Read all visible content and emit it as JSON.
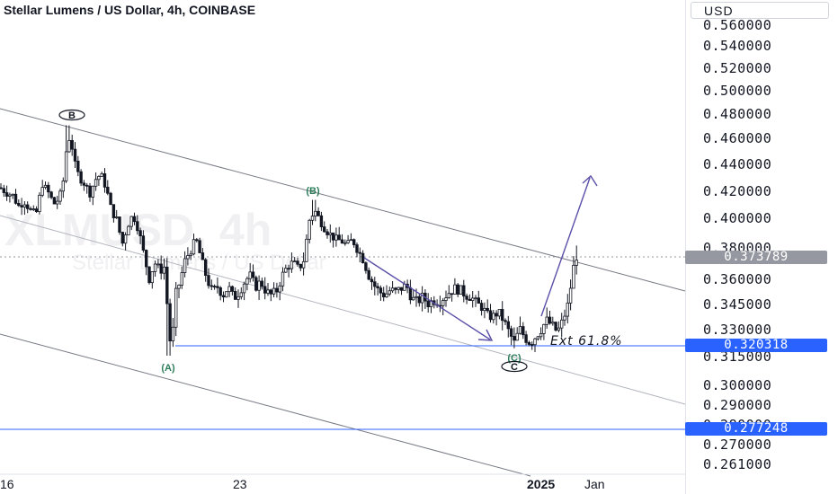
{
  "header": {
    "title": "Stellar Lumens / US Dollar, 4h, COINBASE"
  },
  "watermark": {
    "symbol": "XLMUSD, 4h",
    "name": "Stellar Lumens / US Dollar"
  },
  "price_axis": {
    "currency": "USD",
    "ticks": [
      "0.560000",
      "0.540000",
      "0.520000",
      "0.500000",
      "0.480000",
      "0.460000",
      "0.440000",
      "0.420000",
      "0.400000",
      "0.380000",
      "0.360000",
      "0.345000",
      "0.330000",
      "0.315000",
      "0.300000",
      "0.290000",
      "0.280000",
      "0.270000",
      "0.261000"
    ],
    "current_price": "0.373789",
    "level_1": "0.320318",
    "level_2": "0.277248"
  },
  "time_axis": {
    "ticks": [
      "16",
      "23",
      "2025",
      "Jan"
    ]
  },
  "annotations": {
    "wave_A": "(A)",
    "wave_B_major": "B",
    "wave_B_minor": "(B)",
    "wave_C_major": "C",
    "wave_C_minor": "(C)",
    "ext_label": "Ext 61.8%"
  },
  "colors": {
    "candle": "#131722",
    "line": "#2962ff",
    "arrow": "#5a4fa8",
    "channel": "#787b86",
    "badge_dark": "#9598a1",
    "badge_blue": "#2962ff",
    "wave_text": "#2e7d5b"
  },
  "chart_data": {
    "type": "candlestick",
    "title": "Stellar Lumens / US Dollar, 4h, COINBASE",
    "ylabel": "USD",
    "ylim": [
      0.26,
      0.565
    ],
    "x_ticks": [
      "16",
      "23",
      "2025",
      "Jan"
    ],
    "current_price": 0.373789,
    "horizontal_levels": [
      0.320318,
      0.277248
    ],
    "close_path": [
      {
        "t": 0,
        "c": 0.422
      },
      {
        "t": 8,
        "c": 0.418
      },
      {
        "t": 15,
        "c": 0.416
      },
      {
        "t": 20,
        "c": 0.408
      },
      {
        "t": 27,
        "c": 0.412
      },
      {
        "t": 34,
        "c": 0.405
      },
      {
        "t": 40,
        "c": 0.402
      },
      {
        "t": 47,
        "c": 0.425
      },
      {
        "t": 54,
        "c": 0.418
      },
      {
        "t": 60,
        "c": 0.41
      },
      {
        "t": 66,
        "c": 0.414
      },
      {
        "t": 70,
        "c": 0.425
      },
      {
        "t": 74,
        "c": 0.452
      },
      {
        "t": 78,
        "c": 0.462
      },
      {
        "t": 83,
        "c": 0.44
      },
      {
        "t": 88,
        "c": 0.43
      },
      {
        "t": 94,
        "c": 0.425
      },
      {
        "t": 100,
        "c": 0.418
      },
      {
        "t": 106,
        "c": 0.428
      },
      {
        "t": 112,
        "c": 0.432
      },
      {
        "t": 118,
        "c": 0.422
      },
      {
        "t": 124,
        "c": 0.405
      },
      {
        "t": 130,
        "c": 0.398
      },
      {
        "t": 136,
        "c": 0.382
      },
      {
        "t": 142,
        "c": 0.395
      },
      {
        "t": 148,
        "c": 0.402
      },
      {
        "t": 154,
        "c": 0.392
      },
      {
        "t": 160,
        "c": 0.375
      },
      {
        "t": 166,
        "c": 0.36
      },
      {
        "t": 172,
        "c": 0.37
      },
      {
        "t": 178,
        "c": 0.365
      },
      {
        "t": 184,
        "c": 0.368
      },
      {
        "t": 187,
        "c": 0.33
      },
      {
        "t": 191,
        "c": 0.318
      },
      {
        "t": 195,
        "c": 0.35
      },
      {
        "t": 200,
        "c": 0.358
      },
      {
        "t": 206,
        "c": 0.372
      },
      {
        "t": 212,
        "c": 0.378
      },
      {
        "t": 218,
        "c": 0.385
      },
      {
        "t": 224,
        "c": 0.372
      },
      {
        "t": 230,
        "c": 0.36
      },
      {
        "t": 236,
        "c": 0.352
      },
      {
        "t": 242,
        "c": 0.355
      },
      {
        "t": 248,
        "c": 0.35
      },
      {
        "t": 254,
        "c": 0.355
      },
      {
        "t": 260,
        "c": 0.348
      },
      {
        "t": 266,
        "c": 0.352
      },
      {
        "t": 272,
        "c": 0.358
      },
      {
        "t": 278,
        "c": 0.362
      },
      {
        "t": 284,
        "c": 0.355
      },
      {
        "t": 290,
        "c": 0.358
      },
      {
        "t": 296,
        "c": 0.352
      },
      {
        "t": 302,
        "c": 0.35
      },
      {
        "t": 308,
        "c": 0.353
      },
      {
        "t": 314,
        "c": 0.362
      },
      {
        "t": 320,
        "c": 0.368
      },
      {
        "t": 326,
        "c": 0.37
      },
      {
        "t": 332,
        "c": 0.366
      },
      {
        "t": 338,
        "c": 0.372
      },
      {
        "t": 344,
        "c": 0.398
      },
      {
        "t": 350,
        "c": 0.405
      },
      {
        "t": 356,
        "c": 0.398
      },
      {
        "t": 362,
        "c": 0.392
      },
      {
        "t": 368,
        "c": 0.388
      },
      {
        "t": 374,
        "c": 0.385
      },
      {
        "t": 380,
        "c": 0.384
      },
      {
        "t": 386,
        "c": 0.381
      },
      {
        "t": 392,
        "c": 0.385
      },
      {
        "t": 398,
        "c": 0.378
      },
      {
        "t": 404,
        "c": 0.372
      },
      {
        "t": 410,
        "c": 0.362
      },
      {
        "t": 416,
        "c": 0.356
      },
      {
        "t": 422,
        "c": 0.352
      },
      {
        "t": 428,
        "c": 0.35
      },
      {
        "t": 434,
        "c": 0.353
      },
      {
        "t": 440,
        "c": 0.352
      },
      {
        "t": 446,
        "c": 0.354
      },
      {
        "t": 452,
        "c": 0.356
      },
      {
        "t": 458,
        "c": 0.348
      },
      {
        "t": 464,
        "c": 0.346
      },
      {
        "t": 470,
        "c": 0.349
      },
      {
        "t": 476,
        "c": 0.345
      },
      {
        "t": 482,
        "c": 0.347
      },
      {
        "t": 488,
        "c": 0.346
      },
      {
        "t": 494,
        "c": 0.349
      },
      {
        "t": 500,
        "c": 0.352
      },
      {
        "t": 506,
        "c": 0.354
      },
      {
        "t": 512,
        "c": 0.353
      },
      {
        "t": 518,
        "c": 0.35
      },
      {
        "t": 524,
        "c": 0.349
      },
      {
        "t": 530,
        "c": 0.345
      },
      {
        "t": 536,
        "c": 0.343
      },
      {
        "t": 542,
        "c": 0.338
      },
      {
        "t": 548,
        "c": 0.337
      },
      {
        "t": 554,
        "c": 0.34
      },
      {
        "t": 560,
        "c": 0.335
      },
      {
        "t": 566,
        "c": 0.328
      },
      {
        "t": 572,
        "c": 0.322
      },
      {
        "t": 578,
        "c": 0.33
      },
      {
        "t": 584,
        "c": 0.325
      },
      {
        "t": 590,
        "c": 0.322
      },
      {
        "t": 596,
        "c": 0.326
      },
      {
        "t": 602,
        "c": 0.33
      },
      {
        "t": 608,
        "c": 0.335
      },
      {
        "t": 614,
        "c": 0.332
      },
      {
        "t": 620,
        "c": 0.328
      },
      {
        "t": 626,
        "c": 0.335
      },
      {
        "t": 632,
        "c": 0.345
      },
      {
        "t": 636,
        "c": 0.36
      },
      {
        "t": 640,
        "c": 0.375
      },
      {
        "t": 644,
        "c": 0.372
      }
    ]
  }
}
